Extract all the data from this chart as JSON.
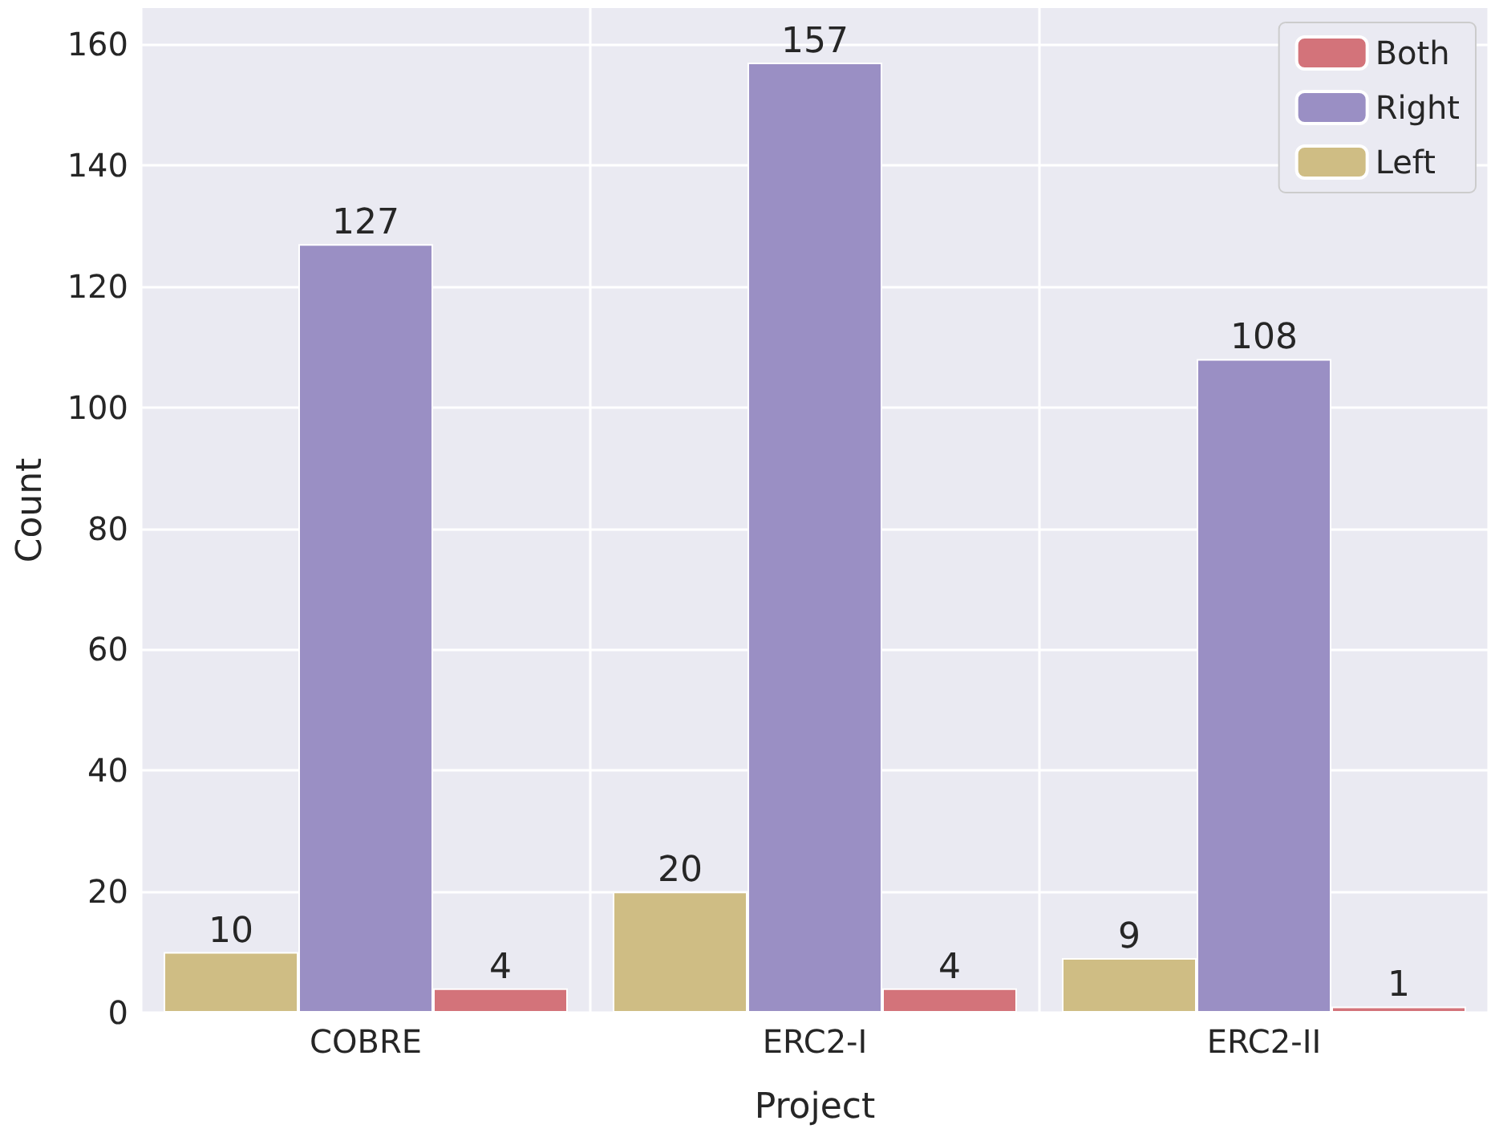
{
  "chart_data": {
    "type": "bar",
    "xlabel": "Project",
    "ylabel": "Count",
    "categories": [
      "COBRE",
      "ERC2-I",
      "ERC2-II"
    ],
    "series": [
      {
        "name": "Left",
        "color": "#cfbd84",
        "values": [
          10,
          20,
          9
        ]
      },
      {
        "name": "Right",
        "color": "#9a8fc4",
        "values": [
          127,
          157,
          108
        ]
      },
      {
        "name": "Both",
        "color": "#d3737a",
        "values": [
          4,
          4,
          1
        ]
      }
    ],
    "ylim": [
      0,
      166
    ],
    "yticks": [
      0,
      20,
      40,
      60,
      80,
      100,
      120,
      140,
      160
    ],
    "grid": true,
    "legend": "top right",
    "data_labels": true
  }
}
